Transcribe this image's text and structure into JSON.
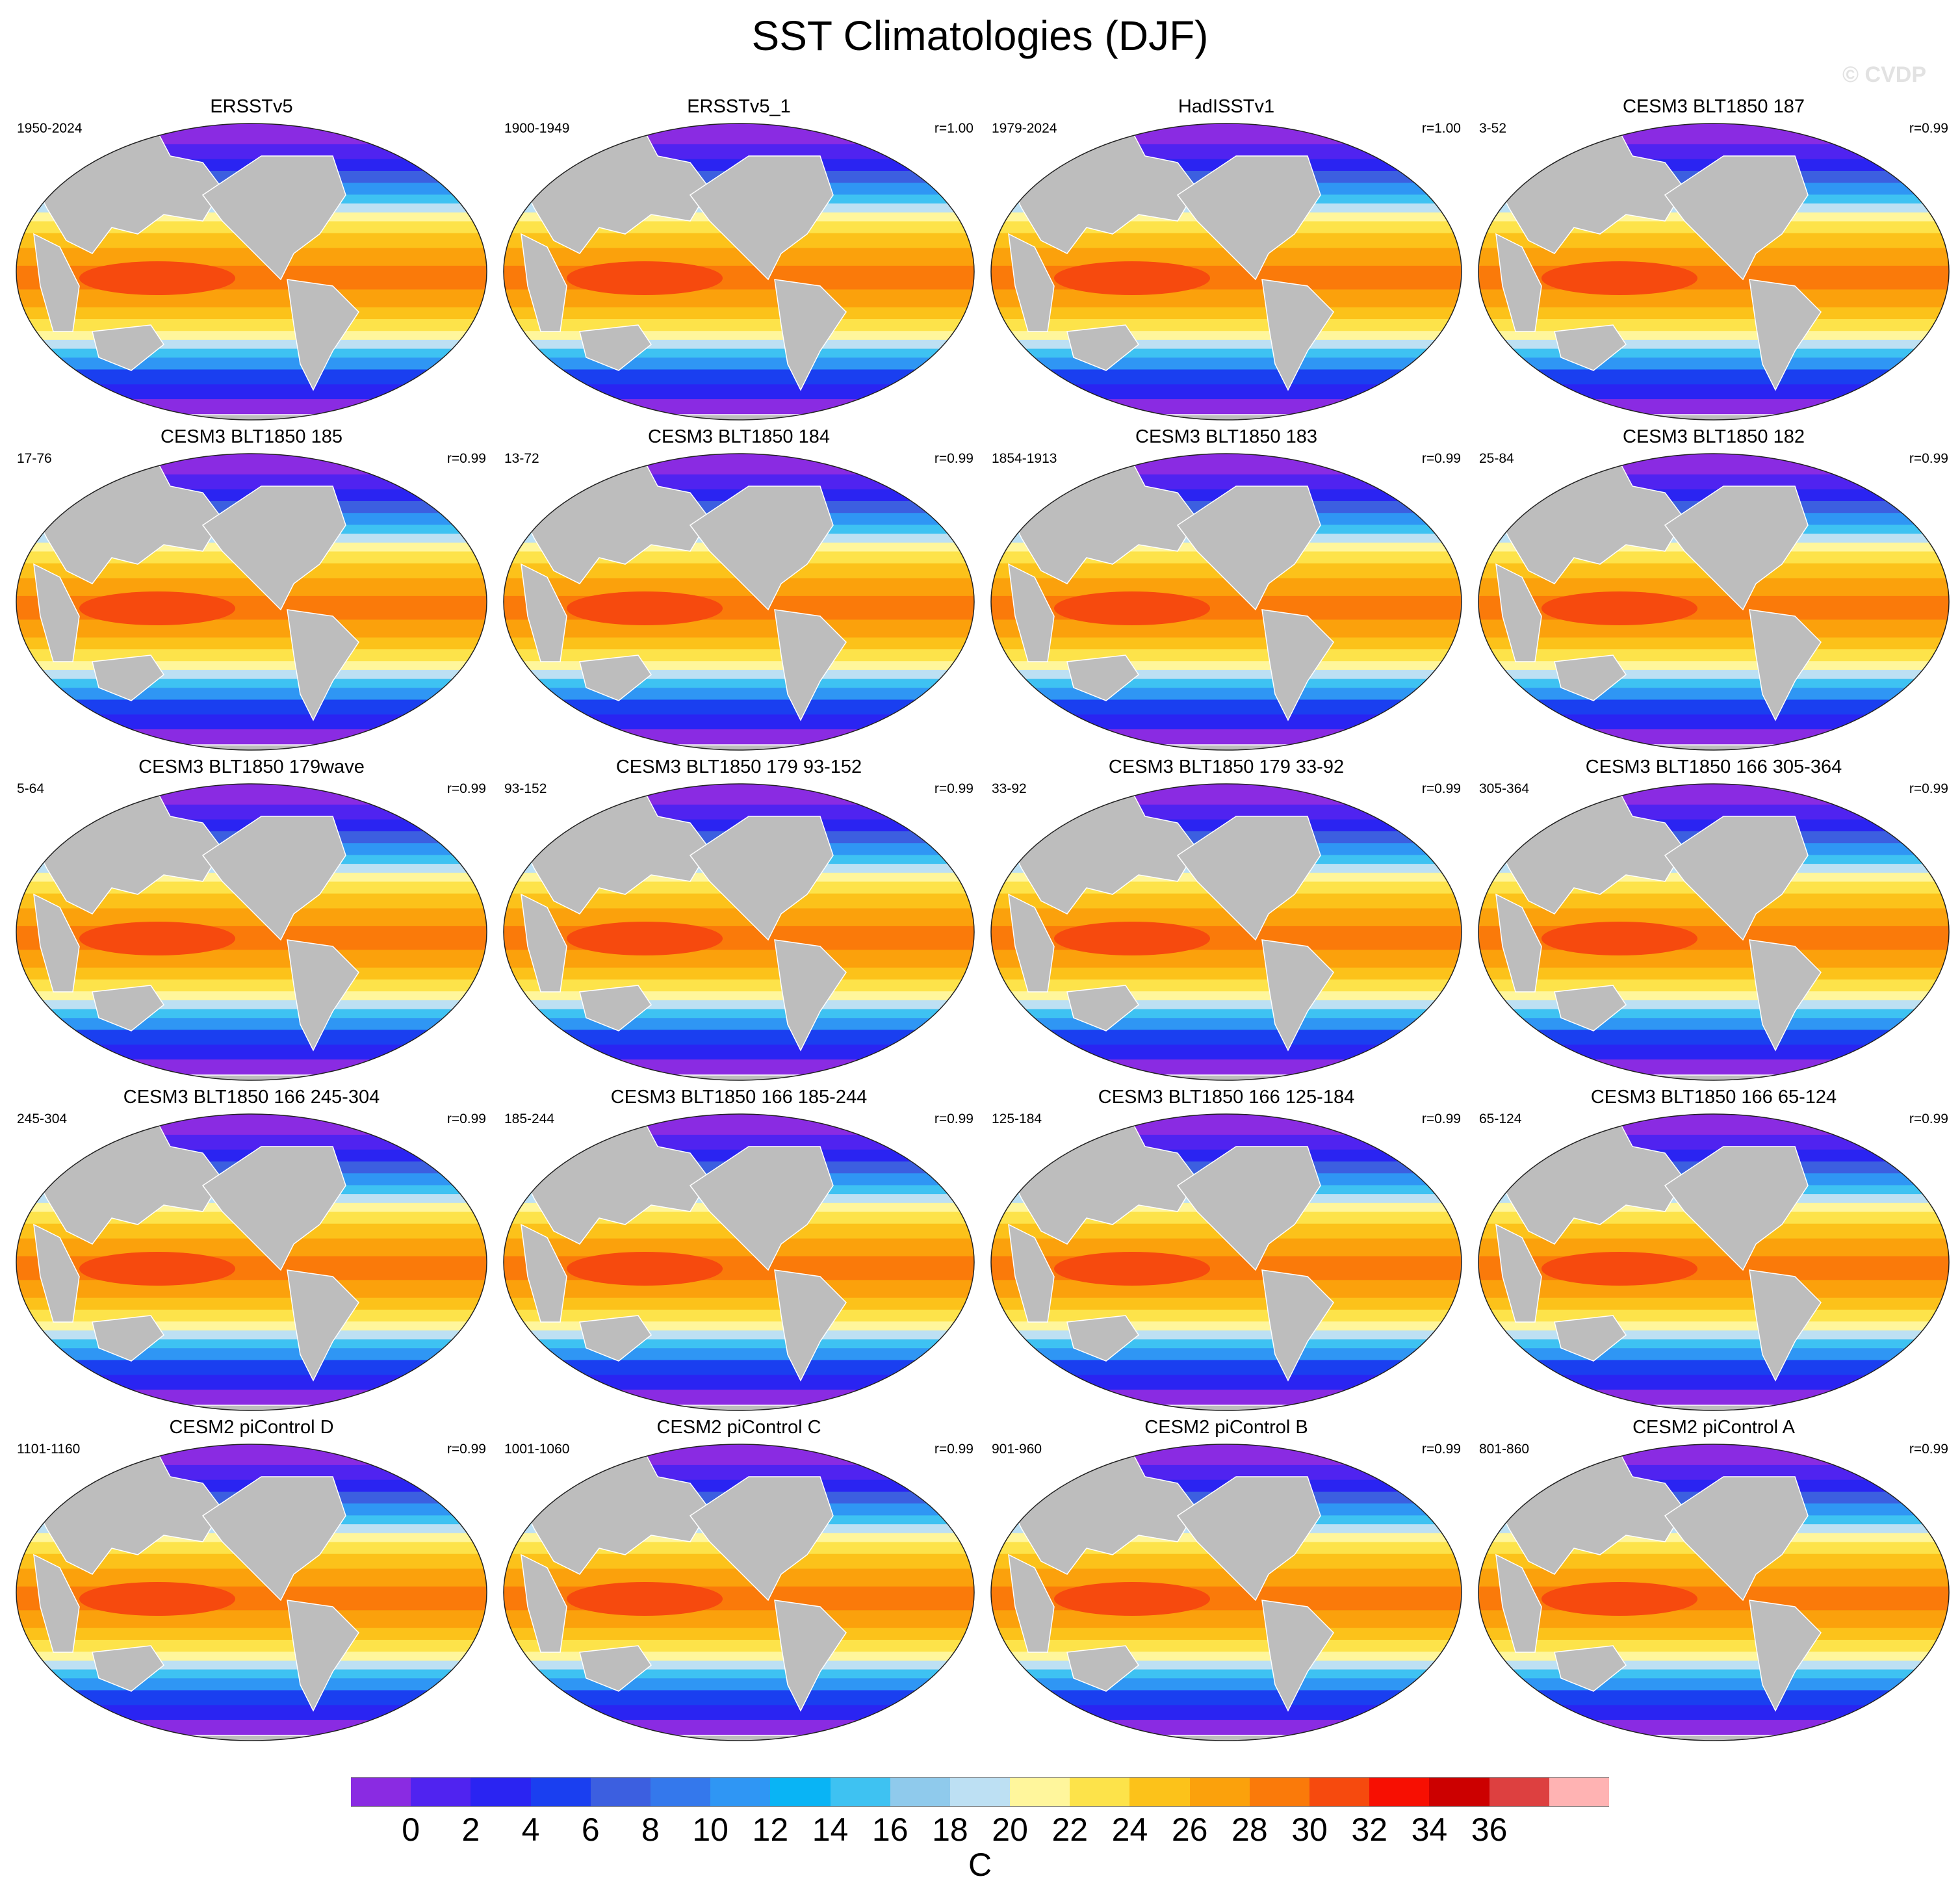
{
  "title": "SST Climatologies (DJF)",
  "watermark": "© CVDP",
  "colors": {
    "land": "#bdbdbd",
    "palette": [
      "#8a2be2",
      "#5023f0",
      "#2a24f2",
      "#1a3ff0",
      "#3c5fe0",
      "#3478ec",
      "#2f96f4",
      "#09b4f5",
      "#3ec2f2",
      "#8fcaec",
      "#bde0f3",
      "#fff69c",
      "#fde34a",
      "#fcc21a",
      "#fba10c",
      "#fa7a0a",
      "#f64a0e",
      "#f70f02",
      "#cc0000",
      "#dd4040",
      "#ffb3b3"
    ]
  },
  "panels": [
    {
      "title": "ERSSTv5",
      "years": "1950-2024",
      "r": ""
    },
    {
      "title": "ERSSTv5_1",
      "years": "1900-1949",
      "r": "r=1.00"
    },
    {
      "title": "HadISSTv1",
      "years": "1979-2024",
      "r": "r=1.00"
    },
    {
      "title": "CESM3 BLT1850 187",
      "years": "3-52",
      "r": "r=0.99"
    },
    {
      "title": "CESM3 BLT1850 185",
      "years": "17-76",
      "r": "r=0.99"
    },
    {
      "title": "CESM3 BLT1850 184",
      "years": "13-72",
      "r": "r=0.99"
    },
    {
      "title": "CESM3 BLT1850 183",
      "years": "1854-1913",
      "r": "r=0.99"
    },
    {
      "title": "CESM3 BLT1850 182",
      "years": "25-84",
      "r": "r=0.99"
    },
    {
      "title": "CESM3 BLT1850 179wave",
      "years": "5-64",
      "r": "r=0.99"
    },
    {
      "title": "CESM3 BLT1850 179 93-152",
      "years": "93-152",
      "r": "r=0.99"
    },
    {
      "title": "CESM3 BLT1850 179 33-92",
      "years": "33-92",
      "r": "r=0.99"
    },
    {
      "title": "CESM3 BLT1850 166 305-364",
      "years": "305-364",
      "r": "r=0.99"
    },
    {
      "title": "CESM3 BLT1850 166 245-304",
      "years": "245-304",
      "r": "r=0.99"
    },
    {
      "title": "CESM3 BLT1850 166 185-244",
      "years": "185-244",
      "r": "r=0.99"
    },
    {
      "title": "CESM3 BLT1850 166 125-184",
      "years": "125-184",
      "r": "r=0.99"
    },
    {
      "title": "CESM3 BLT1850 166 65-124",
      "years": "65-124",
      "r": "r=0.99"
    },
    {
      "title": "CESM2 piControl D",
      "years": "1101-1160",
      "r": "r=0.99"
    },
    {
      "title": "CESM2 piControl C",
      "years": "1001-1060",
      "r": "r=0.99"
    },
    {
      "title": "CESM2 piControl B",
      "years": "901-960",
      "r": "r=0.99"
    },
    {
      "title": "CESM2 piControl A",
      "years": "801-860",
      "r": "r=0.99"
    }
  ],
  "colorbar": {
    "tick_labels": [
      "0",
      "2",
      "4",
      "6",
      "8",
      "10",
      "12",
      "14",
      "16",
      "18",
      "20",
      "22",
      "24",
      "26",
      "28",
      "30",
      "32",
      "34",
      "36"
    ],
    "unit": "C"
  }
}
